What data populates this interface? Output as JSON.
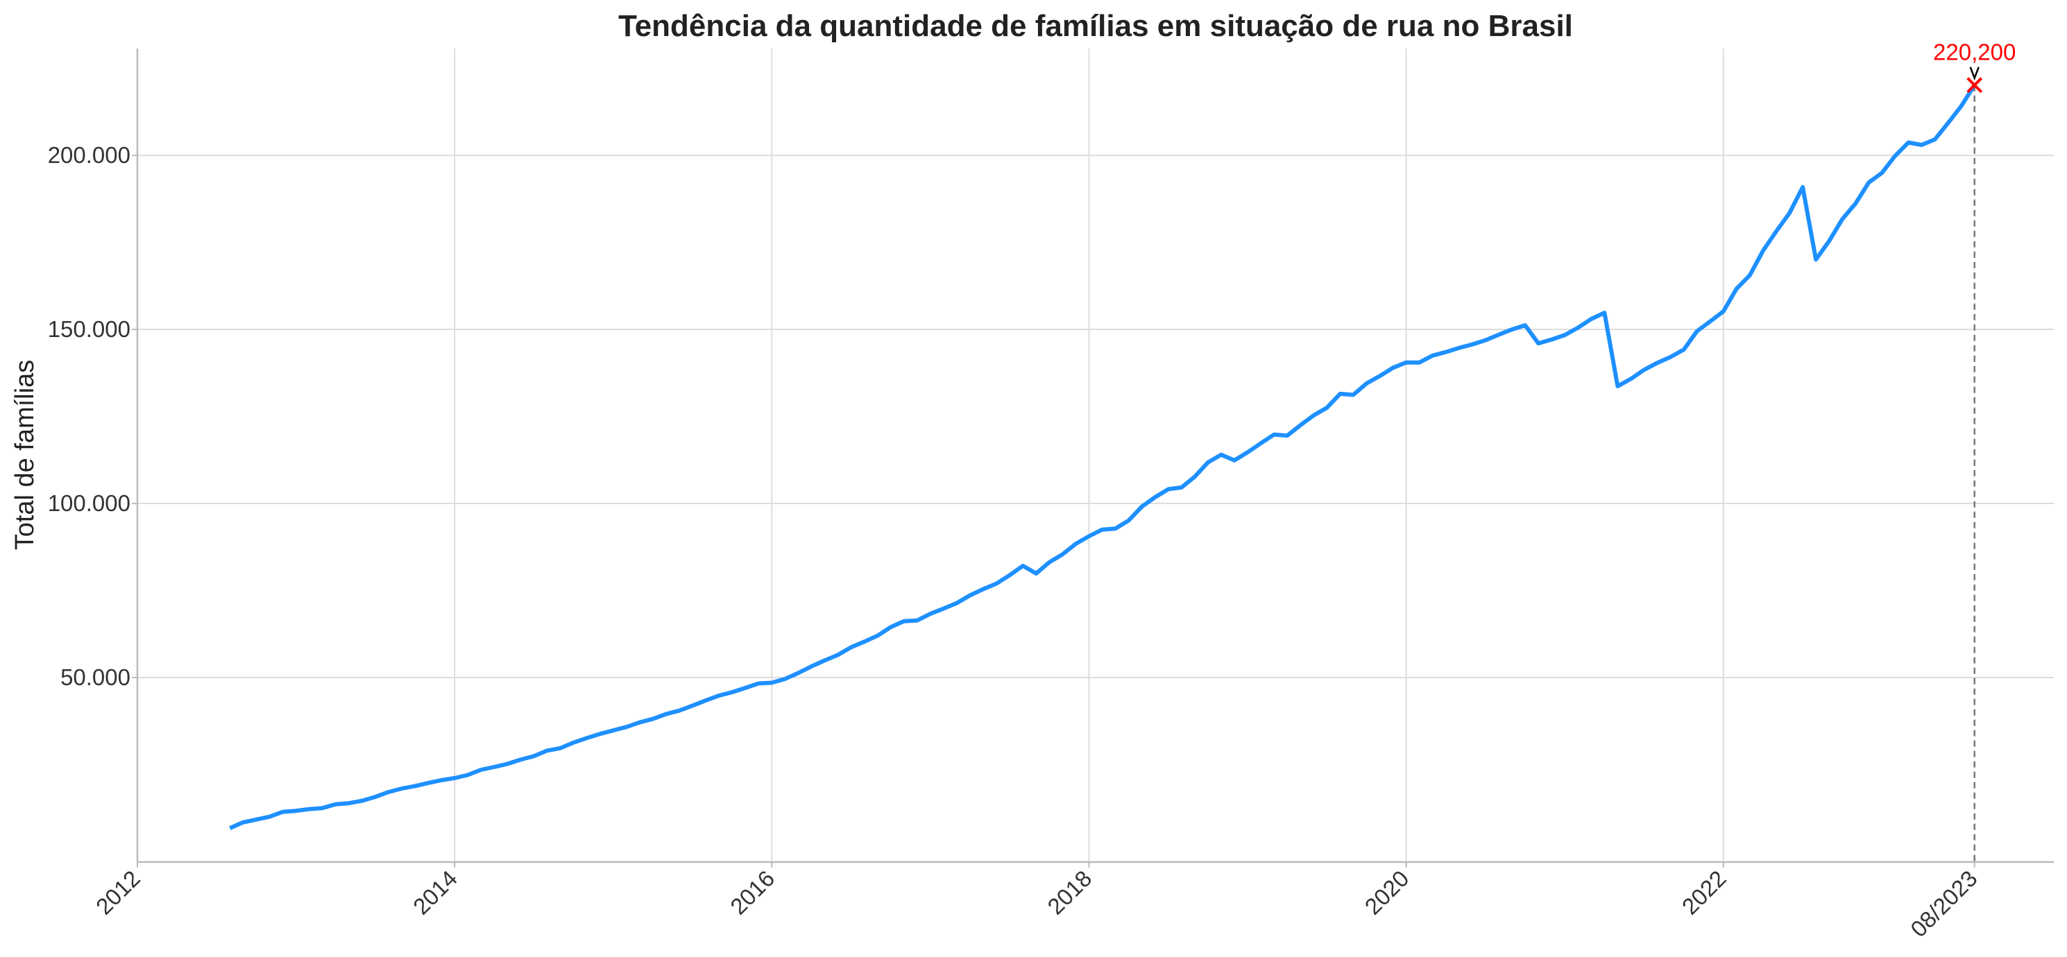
{
  "chart_data": {
    "type": "line",
    "title": "Tendência da quantidade de famílias em situação de rua no Brasil",
    "xlabel": "",
    "ylabel": "Total de famílias",
    "xlim": [
      "2012-01",
      "2024-02"
    ],
    "ylim": [
      -3000,
      230700
    ],
    "grid": true,
    "x_ticks": [
      {
        "date": "2012-01",
        "label": "2012"
      },
      {
        "date": "2014-01",
        "label": "2014"
      },
      {
        "date": "2016-01",
        "label": "2016"
      },
      {
        "date": "2018-01",
        "label": "2018"
      },
      {
        "date": "2020-01",
        "label": "2020"
      },
      {
        "date": "2022-01",
        "label": "2022"
      },
      {
        "date": "2023-08",
        "label": "08/2023"
      }
    ],
    "y_ticks": [
      {
        "value": 50000,
        "label": "50.000"
      },
      {
        "value": 100000,
        "label": "100.000"
      },
      {
        "value": 150000,
        "label": "150.000"
      },
      {
        "value": 200000,
        "label": "200.000"
      }
    ],
    "line_color": "#1e90ff",
    "x": [
      "2012-08",
      "2012-09",
      "2012-10",
      "2012-11",
      "2012-12",
      "2013-01",
      "2013-02",
      "2013-03",
      "2013-04",
      "2013-05",
      "2013-06",
      "2013-07",
      "2013-08",
      "2013-09",
      "2013-10",
      "2013-11",
      "2013-12",
      "2014-01",
      "2014-02",
      "2014-03",
      "2014-04",
      "2014-05",
      "2014-06",
      "2014-07",
      "2014-08",
      "2014-09",
      "2014-10",
      "2014-11",
      "2014-12",
      "2015-01",
      "2015-02",
      "2015-03",
      "2015-04",
      "2015-05",
      "2015-06",
      "2015-07",
      "2015-08",
      "2015-09",
      "2015-10",
      "2015-11",
      "2015-12",
      "2016-01",
      "2016-02",
      "2016-03",
      "2016-04",
      "2016-05",
      "2016-06",
      "2016-07",
      "2016-08",
      "2016-09",
      "2016-10",
      "2016-11",
      "2016-12",
      "2017-01",
      "2017-02",
      "2017-03",
      "2017-04",
      "2017-05",
      "2017-06",
      "2017-07",
      "2017-08",
      "2017-09",
      "2017-10",
      "2017-11",
      "2017-12",
      "2018-01",
      "2018-02",
      "2018-03",
      "2018-04",
      "2018-05",
      "2018-06",
      "2018-07",
      "2018-08",
      "2018-09",
      "2018-10",
      "2018-11",
      "2018-12",
      "2019-01",
      "2019-02",
      "2019-03",
      "2019-04",
      "2019-05",
      "2019-06",
      "2019-07",
      "2019-08",
      "2019-09",
      "2019-10",
      "2019-11",
      "2019-12",
      "2020-01",
      "2020-02",
      "2020-03",
      "2020-04",
      "2020-05",
      "2020-06",
      "2020-07",
      "2020-08",
      "2020-09",
      "2020-10",
      "2020-11",
      "2020-12",
      "2021-01",
      "2021-02",
      "2021-03",
      "2021-04",
      "2021-05",
      "2021-06",
      "2021-07",
      "2021-08",
      "2021-09",
      "2021-10",
      "2021-11",
      "2021-12",
      "2022-01",
      "2022-02",
      "2022-03",
      "2022-04",
      "2022-05",
      "2022-06",
      "2022-07",
      "2022-08",
      "2022-09",
      "2022-10",
      "2022-11",
      "2022-12",
      "2023-01",
      "2023-02",
      "2023-03",
      "2023-04",
      "2023-05",
      "2023-06",
      "2023-07",
      "2023-08"
    ],
    "values": [
      6700,
      8400,
      9200,
      10000,
      11400,
      11700,
      12200,
      12500,
      13600,
      13900,
      14600,
      15700,
      17100,
      18100,
      18800,
      19700,
      20500,
      21100,
      22000,
      23500,
      24300,
      25200,
      26400,
      27400,
      29000,
      29700,
      31300,
      32600,
      33800,
      34800,
      35800,
      37100,
      38100,
      39500,
      40500,
      41900,
      43400,
      44800,
      45800,
      47000,
      48300,
      48500,
      49600,
      51300,
      53200,
      54900,
      56500,
      58700,
      60300,
      62000,
      64500,
      66200,
      66400,
      68300,
      69800,
      71400,
      73600,
      75400,
      77000,
      79400,
      82100,
      79900,
      83100,
      85400,
      88400,
      90600,
      92500,
      92800,
      95100,
      99100,
      101800,
      104100,
      104600,
      107700,
      111800,
      114000,
      112400,
      114700,
      117300,
      119800,
      119500,
      122500,
      125300,
      127500,
      131500,
      131200,
      134500,
      136600,
      139000,
      140500,
      140500,
      142500,
      143500,
      144700,
      145700,
      146900,
      148500,
      150000,
      151200,
      146000,
      147100,
      148400,
      150500,
      153000,
      154800,
      133700,
      135800,
      138400,
      140400,
      142100,
      144200,
      149500,
      152300,
      155200,
      161700,
      165600,
      172600,
      178200,
      183400,
      190900,
      170100,
      175400,
      181700,
      186200,
      192200,
      195000,
      199900,
      203700,
      203000,
      204600,
      209300,
      214200,
      220200
    ],
    "annotation": {
      "date": "2023-08",
      "value": 220200,
      "label": "220,200",
      "label_color": "#ff0000",
      "marker": "x",
      "marker_color": "#ff0000",
      "reference_line": "dashed vertical",
      "reference_line_color": "#777777"
    }
  }
}
